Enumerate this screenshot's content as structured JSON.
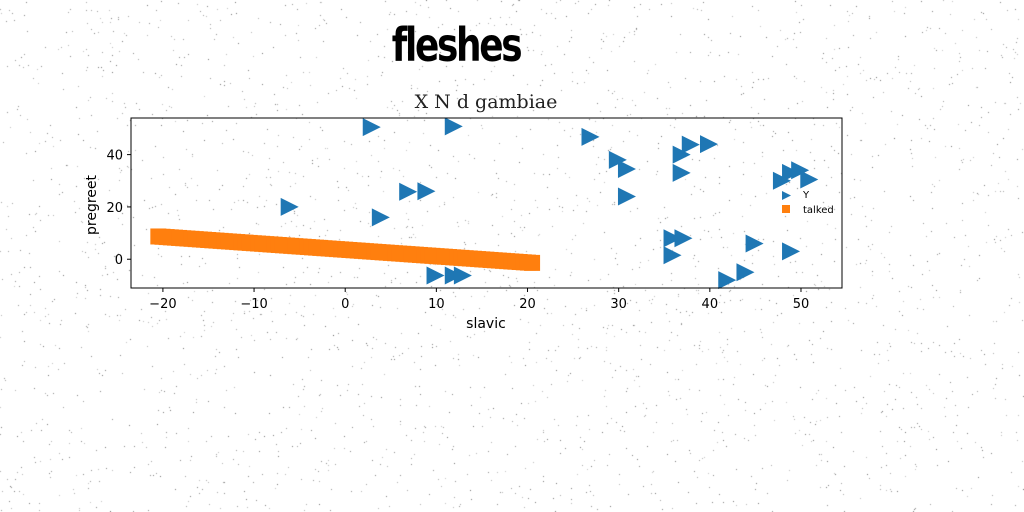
{
  "page": {
    "title": "fleshes"
  },
  "chart_data": {
    "type": "scatter",
    "title": "X N d gambiae",
    "xlabel": "slavic",
    "ylabel": "pregreet",
    "xlim": [
      -23.5,
      54.5
    ],
    "ylim": [
      -11,
      54
    ],
    "xticks": [
      -20,
      -10,
      0,
      10,
      20,
      30,
      40,
      50
    ],
    "yticks": [
      0,
      20,
      40
    ],
    "grid": false,
    "legend_position": "right",
    "series": [
      {
        "name": "Y",
        "marker": "triangle-right",
        "color": "#1f77b4",
        "points": [
          [
            2.8,
            50.5
          ],
          [
            11.8,
            50.8
          ],
          [
            -6.2,
            20
          ],
          [
            3.8,
            16
          ],
          [
            6.8,
            25.8
          ],
          [
            8.8,
            26
          ],
          [
            26.8,
            46.8
          ],
          [
            29.8,
            38
          ],
          [
            30.8,
            34.5
          ],
          [
            30.8,
            24
          ],
          [
            36.8,
            40
          ],
          [
            37.8,
            43.8
          ],
          [
            39.8,
            44
          ],
          [
            36.8,
            33
          ],
          [
            35.8,
            8
          ],
          [
            37.0,
            8
          ],
          [
            35.8,
            1.5
          ],
          [
            9.8,
            -6.2
          ],
          [
            11.8,
            -6.2
          ],
          [
            12.8,
            -6.2
          ],
          [
            41.8,
            -8
          ],
          [
            43.8,
            -5
          ],
          [
            44.8,
            6
          ],
          [
            47.8,
            30
          ],
          [
            48.8,
            33
          ],
          [
            49.8,
            34
          ],
          [
            50.8,
            30.5
          ],
          [
            48.8,
            3
          ]
        ]
      },
      {
        "name": "talked",
        "marker": "square",
        "color": "#ff7f0e",
        "line": {
          "x": [
            -20.5,
            20.5
          ],
          "y": [
            8.7,
            -1.4
          ]
        }
      }
    ]
  }
}
